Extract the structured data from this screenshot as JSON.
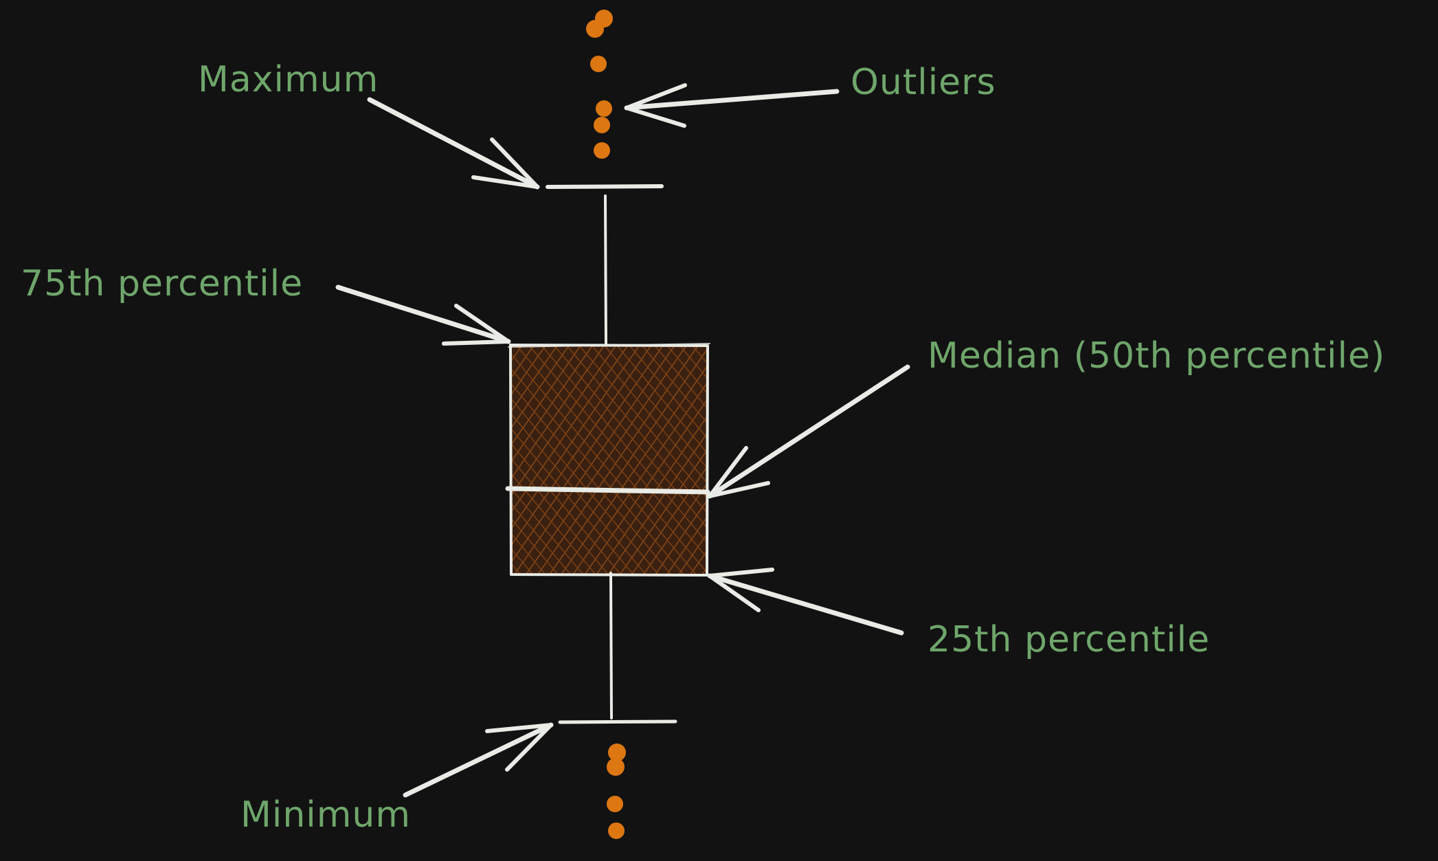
{
  "colors": {
    "background": "#121212",
    "label": "#6fa66b",
    "line": "#e9ece6",
    "outlier": "#dd7712",
    "box_fill": "#3a2010",
    "hatch": "#8a4a18"
  },
  "labels": {
    "maximum": "Maximum",
    "outliers": "Outliers",
    "q3": "75th percentile",
    "median": "Median (50th percentile)",
    "q1": "25th percentile",
    "minimum": "Minimum"
  }
}
